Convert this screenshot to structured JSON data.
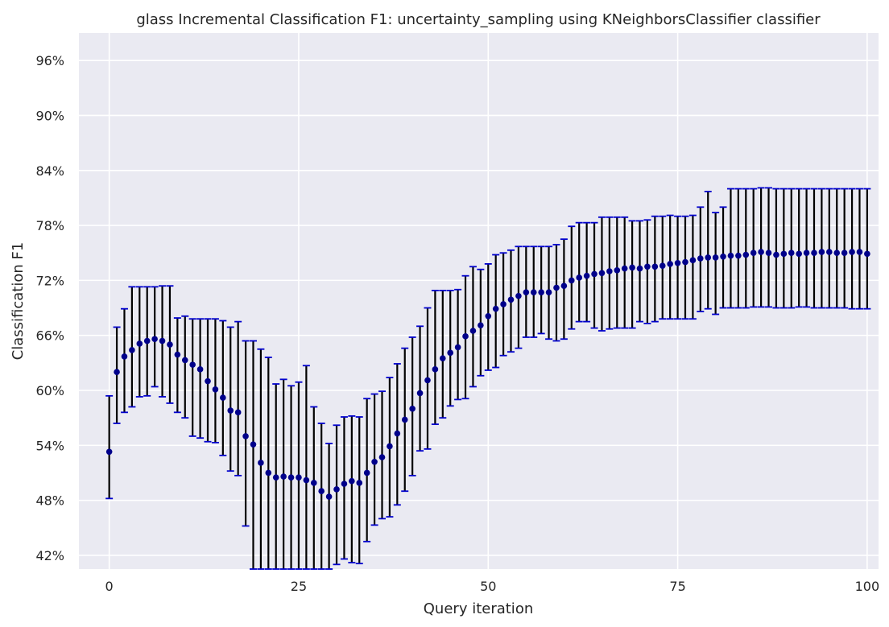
{
  "chart_data": {
    "type": "scatter",
    "title": "glass Incremental Classification F1: uncertainty_sampling using KNeighborsClassifier classifier",
    "xlabel": "Query iteration",
    "ylabel": "Classification F1",
    "xlim": [
      -4,
      101.5
    ],
    "ylim": [
      40.5,
      99.0
    ],
    "x_ticks": [
      0,
      25,
      50,
      75,
      100
    ],
    "y_ticks": [
      42,
      48,
      54,
      60,
      66,
      72,
      78,
      84,
      90,
      96
    ],
    "y_tick_suffix": "%",
    "grid": true,
    "background": "#eaeaf2",
    "grid_color": "#ffffff",
    "marker_color": "#00008b",
    "errorbar_color": "#000000",
    "cap_color": "#0000cd",
    "series": [
      {
        "x": [
          0,
          1,
          2,
          3,
          4,
          5,
          6,
          7,
          8,
          9,
          10,
          11,
          12,
          13,
          14,
          15,
          16,
          17,
          18,
          19,
          20,
          21,
          22,
          23,
          24,
          25,
          26,
          27,
          28,
          29,
          30,
          31,
          32,
          33,
          34,
          35,
          36,
          37,
          38,
          39,
          40,
          41,
          42,
          43,
          44,
          45,
          46,
          47,
          48,
          49,
          50,
          51,
          52,
          53,
          54,
          55,
          56,
          57,
          58,
          59,
          60,
          61,
          62,
          63,
          64,
          65,
          66,
          67,
          68,
          69,
          70,
          71,
          72,
          73,
          74,
          75,
          76,
          77,
          78,
          79,
          80,
          81,
          82,
          83,
          84,
          85,
          86,
          87,
          88,
          89,
          90,
          91,
          92,
          93,
          94,
          95,
          96,
          97,
          98,
          99,
          100
        ],
        "y": [
          53.3,
          62.0,
          63.7,
          64.4,
          65.1,
          65.4,
          65.6,
          65.4,
          65.0,
          63.9,
          63.3,
          62.8,
          62.3,
          61.0,
          60.1,
          59.2,
          57.8,
          57.6,
          55.0,
          54.1,
          52.1,
          51.0,
          50.5,
          50.6,
          50.5,
          50.5,
          50.2,
          49.9,
          49.0,
          48.4,
          49.2,
          49.8,
          50.1,
          49.9,
          51.0,
          52.2,
          52.7,
          53.9,
          55.3,
          56.8,
          58.0,
          59.7,
          61.1,
          62.3,
          63.5,
          64.1,
          64.7,
          65.9,
          66.5,
          67.1,
          68.1,
          68.9,
          69.4,
          69.9,
          70.3,
          70.7,
          70.7,
          70.7,
          70.7,
          71.2,
          71.4,
          72.0,
          72.3,
          72.5,
          72.7,
          72.8,
          73.0,
          73.1,
          73.3,
          73.4,
          73.3,
          73.5,
          73.5,
          73.6,
          73.8,
          73.9,
          74.0,
          74.2,
          74.4,
          74.5,
          74.5,
          74.6,
          74.7,
          74.7,
          74.8,
          75.0,
          75.1,
          75.0,
          74.8,
          74.9,
          75.0,
          74.9,
          75.0,
          75.0,
          75.1,
          75.1,
          75.0,
          75.0,
          75.1,
          75.1,
          74.9
        ],
        "yerr_low": [
          48.2,
          56.4,
          57.6,
          58.2,
          59.3,
          59.4,
          60.4,
          59.3,
          58.6,
          57.6,
          57.0,
          55.0,
          54.8,
          54.4,
          54.3,
          52.9,
          51.2,
          50.7,
          45.2,
          40.5,
          40.5,
          40.5,
          40.5,
          40.5,
          40.5,
          40.5,
          40.5,
          40.5,
          40.5,
          40.5,
          41.0,
          41.6,
          41.2,
          41.1,
          43.5,
          45.3,
          46.0,
          46.2,
          47.5,
          49.0,
          50.7,
          53.4,
          53.6,
          56.3,
          57.0,
          58.3,
          59.0,
          59.1,
          60.4,
          61.6,
          62.2,
          62.5,
          63.8,
          64.2,
          64.6,
          65.8,
          65.8,
          66.2,
          65.6,
          65.4,
          65.6,
          66.7,
          67.5,
          67.5,
          66.8,
          66.5,
          66.7,
          66.8,
          66.8,
          66.8,
          67.5,
          67.3,
          67.5,
          67.8,
          67.8,
          67.8,
          67.8,
          67.8,
          68.6,
          68.9,
          68.3,
          69.0,
          69.0,
          69.0,
          69.0,
          69.1,
          69.1,
          69.1,
          69.0,
          69.0,
          69.0,
          69.1,
          69.1,
          69.0,
          69.0,
          69.0,
          69.0,
          69.0,
          68.9,
          68.9,
          68.9
        ],
        "yerr_high": [
          59.4,
          66.9,
          68.9,
          71.3,
          71.3,
          71.3,
          71.3,
          71.4,
          71.4,
          67.9,
          68.1,
          67.8,
          67.8,
          67.8,
          67.8,
          67.6,
          66.9,
          67.5,
          65.4,
          65.4,
          64.5,
          63.6,
          60.7,
          61.2,
          60.5,
          60.9,
          62.7,
          58.2,
          56.4,
          54.2,
          56.2,
          57.1,
          57.2,
          57.1,
          59.1,
          59.6,
          59.9,
          61.4,
          62.9,
          64.6,
          65.8,
          67.0,
          69.0,
          70.9,
          70.9,
          70.9,
          71.0,
          72.5,
          73.5,
          73.2,
          73.8,
          74.8,
          75.0,
          75.3,
          75.7,
          75.7,
          75.7,
          75.7,
          75.7,
          75.9,
          76.5,
          77.9,
          78.3,
          78.3,
          78.3,
          78.9,
          78.9,
          78.9,
          78.9,
          78.5,
          78.5,
          78.6,
          79.0,
          79.0,
          79.1,
          79.0,
          79.0,
          79.1,
          80.0,
          81.7,
          79.4,
          80.0,
          82.0,
          82.0,
          82.0,
          82.0,
          82.1,
          82.1,
          82.0,
          82.0,
          82.0,
          82.0,
          82.0,
          82.0,
          82.0,
          82.0,
          82.0,
          82.0,
          82.0,
          82.0,
          82.0
        ]
      }
    ]
  }
}
